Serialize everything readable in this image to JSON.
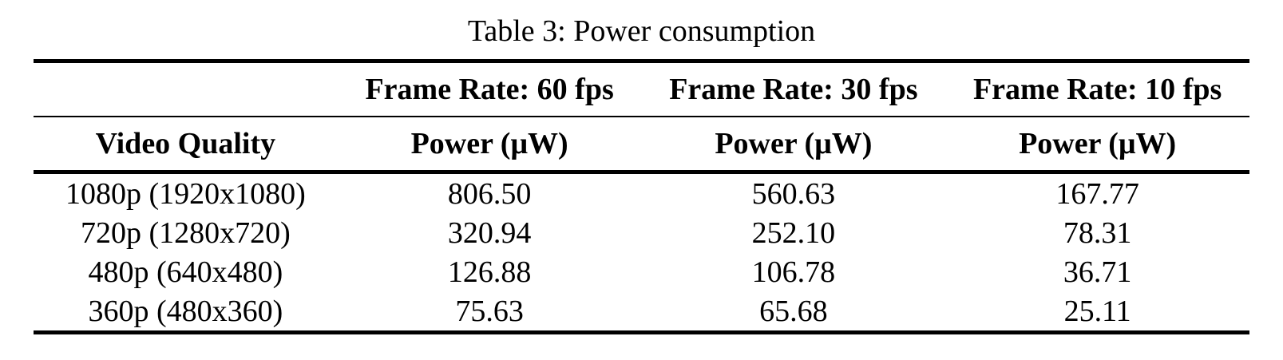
{
  "table": {
    "caption": "Table 3: Power consumption",
    "group_headers": {
      "col1": "",
      "col2": "Frame Rate: 60 fps",
      "col3": "Frame Rate: 30 fps",
      "col4": "Frame Rate: 10 fps"
    },
    "column_headers": {
      "col1": "Video Quality",
      "col2": "Power (μW)",
      "col3": "Power (μW)",
      "col4": "Power (μW)"
    },
    "rows": [
      {
        "quality": "1080p (1920x1080)",
        "fps60": "806.50",
        "fps30": "560.63",
        "fps10": "167.77"
      },
      {
        "quality": "720p (1280x720)",
        "fps60": "320.94",
        "fps30": "252.10",
        "fps10": "78.31"
      },
      {
        "quality": "480p (640x480)",
        "fps60": "126.88",
        "fps30": "106.78",
        "fps10": "36.71"
      },
      {
        "quality": "360p (480x360)",
        "fps60": "75.63",
        "fps30": "65.68",
        "fps10": "25.11"
      }
    ]
  },
  "colors": {
    "text": "#000000",
    "background": "#ffffff",
    "rule": "#000000"
  }
}
